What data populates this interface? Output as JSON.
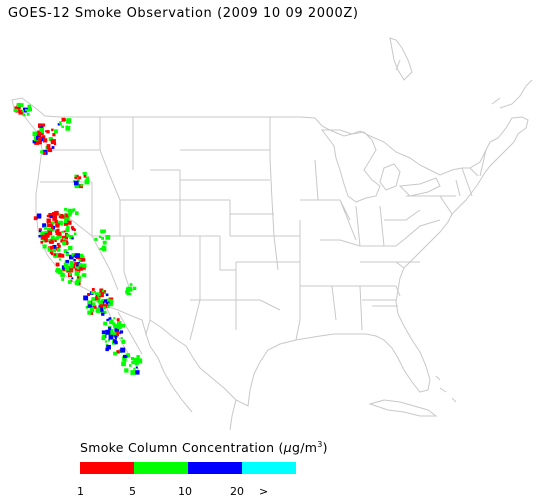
{
  "title": "GOES-12 Smoke Observation (2009 10 09  2000Z)",
  "legend": {
    "title_prefix": "Smoke Column Concentration (",
    "unit_mu": "μ",
    "unit_rest": "g/m",
    "unit_sup": "3",
    "title_suffix": ")",
    "bins": [
      {
        "color": "#ff0000"
      },
      {
        "color": "#00ff00"
      },
      {
        "color": "#0000ff"
      },
      {
        "color": "#00ffff"
      }
    ],
    "ticks": [
      "1",
      "5",
      "10",
      "20",
      ">"
    ]
  },
  "colors": {
    "map_lines": "#c8c8c8"
  }
}
